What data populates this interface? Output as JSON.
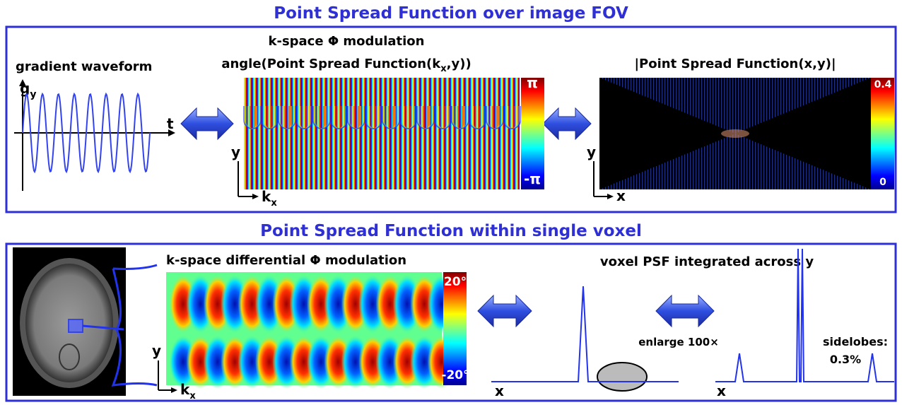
{
  "top": {
    "title": "Point Spread Function over image FOV",
    "waveform": {
      "label": "gradient waveform",
      "y_axis": "g",
      "y_axis_sub": "y",
      "x_axis": "t"
    },
    "kspace": {
      "title": "k-space Φ modulation",
      "subtitle_a": "angle(Point Spread Function(k",
      "subtitle_sub": "x",
      "subtitle_b": ",y))",
      "cbar_max": "π",
      "cbar_min": "-π",
      "y_axis": "y",
      "x_axis": "k",
      "x_axis_sub": "x"
    },
    "psf": {
      "title": "|Point Spread Function(x,y)|",
      "cbar_max": "0.4",
      "cbar_min": "0",
      "y_axis": "y",
      "x_axis": "x"
    }
  },
  "bottom": {
    "title": "Point Spread Function within single voxel",
    "kspace": {
      "title": "k-space differential Φ modulation",
      "cbar_max": "20°",
      "cbar_min": "-20°",
      "y_axis": "y",
      "x_axis": "k",
      "x_axis_sub": "x"
    },
    "voxel": {
      "title": "voxel PSF integrated across y",
      "x_axis": "x",
      "enlarge": "enlarge 100×",
      "x_axis_2": "x",
      "sidelobes_label": "sidelobes:",
      "sidelobes_value": "0.3%"
    }
  }
}
